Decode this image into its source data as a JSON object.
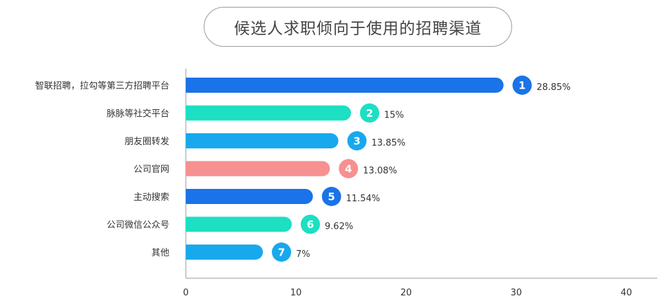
{
  "chart_data": {
    "type": "bar",
    "orientation": "horizontal",
    "title": "候选人求职倾向于使用的招聘渠道",
    "categories": [
      "智联招聘，拉勾等第三方招聘平台",
      "脉脉等社交平台",
      "朋友圈转发",
      "公司官网",
      "主动搜索",
      "公司微信公众号",
      "其他"
    ],
    "values": [
      28.85,
      15,
      13.85,
      13.08,
      11.54,
      9.62,
      7
    ],
    "value_labels": [
      "28.85%",
      "15%",
      "13.85%",
      "13.08%",
      "11.54%",
      "9.62%",
      "7%"
    ],
    "ranks": [
      "1",
      "2",
      "3",
      "4",
      "5",
      "6",
      "7"
    ],
    "bar_colors": [
      "#1a73e8",
      "#1ddfc2",
      "#18a8ee",
      "#f79090",
      "#1a73e8",
      "#1ddfc2",
      "#18a8ee"
    ],
    "xlim": [
      0,
      40
    ],
    "xticks": [
      "0",
      "10",
      "20",
      "30",
      "40"
    ],
    "grid": false
  }
}
